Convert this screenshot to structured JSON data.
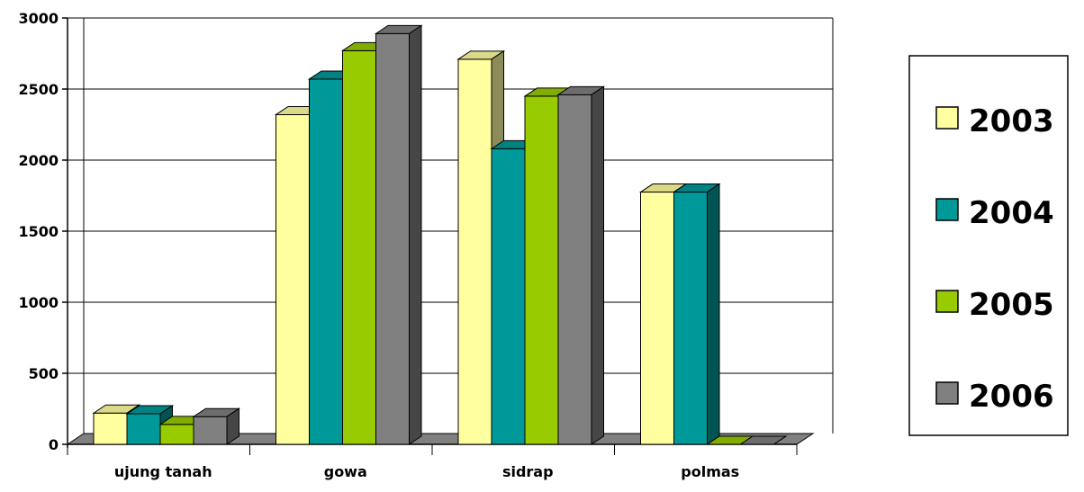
{
  "chart_data": {
    "type": "bar",
    "title": "",
    "xlabel": "",
    "ylabel": "",
    "categories": [
      "ujung tanah",
      "gowa",
      "sidrap",
      "polmas"
    ],
    "series": [
      {
        "name": "2003",
        "values": [
          220,
          2320,
          2710,
          1775
        ],
        "color": "#FFFFA0"
      },
      {
        "name": "2004",
        "values": [
          215,
          2570,
          2080,
          1775
        ],
        "color": "#009999"
      },
      {
        "name": "2005",
        "values": [
          140,
          2770,
          2450,
          0
        ],
        "color": "#99CC00"
      },
      {
        "name": "2006",
        "values": [
          195,
          2890,
          2460,
          0
        ],
        "color": "#808080"
      }
    ],
    "ylim": [
      0,
      3000
    ],
    "yticks": [
      "0",
      "500",
      "1000",
      "1500",
      "2000",
      "2500",
      "3000"
    ],
    "grid": true,
    "legend_position": "right"
  }
}
